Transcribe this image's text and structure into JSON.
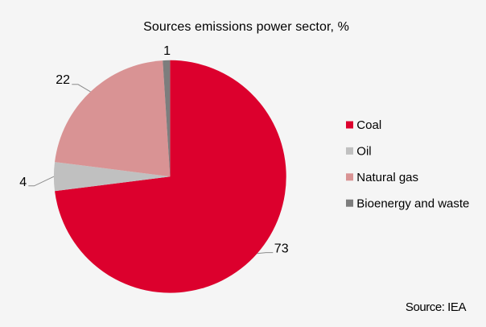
{
  "title": "Sources emissions power sector, %",
  "source_note": "Source: IEA",
  "background_color": "#f5f5f5",
  "chart_data": {
    "type": "pie",
    "title": "Sources emissions power sector, %",
    "categories": [
      "Coal",
      "Oil",
      "Natural gas",
      "Bioenergy and waste"
    ],
    "values": [
      73,
      4,
      22,
      1
    ],
    "unit": "%",
    "colors": [
      "#dc002d",
      "#c0c0c0",
      "#d99394",
      "#7d7d7d"
    ],
    "start_angle_deg": 0,
    "direction": "clockwise",
    "legend_position": "right",
    "data_labels_shown": [
      73,
      4,
      22,
      1
    ],
    "source": "Source: IEA"
  },
  "legend": {
    "items": [
      {
        "label": "Coal",
        "color": "#dc002d"
      },
      {
        "label": "Oil",
        "color": "#c0c0c0"
      },
      {
        "label": "Natural gas",
        "color": "#d99394"
      },
      {
        "label": "Bioenergy and waste",
        "color": "#7d7d7d"
      }
    ]
  }
}
